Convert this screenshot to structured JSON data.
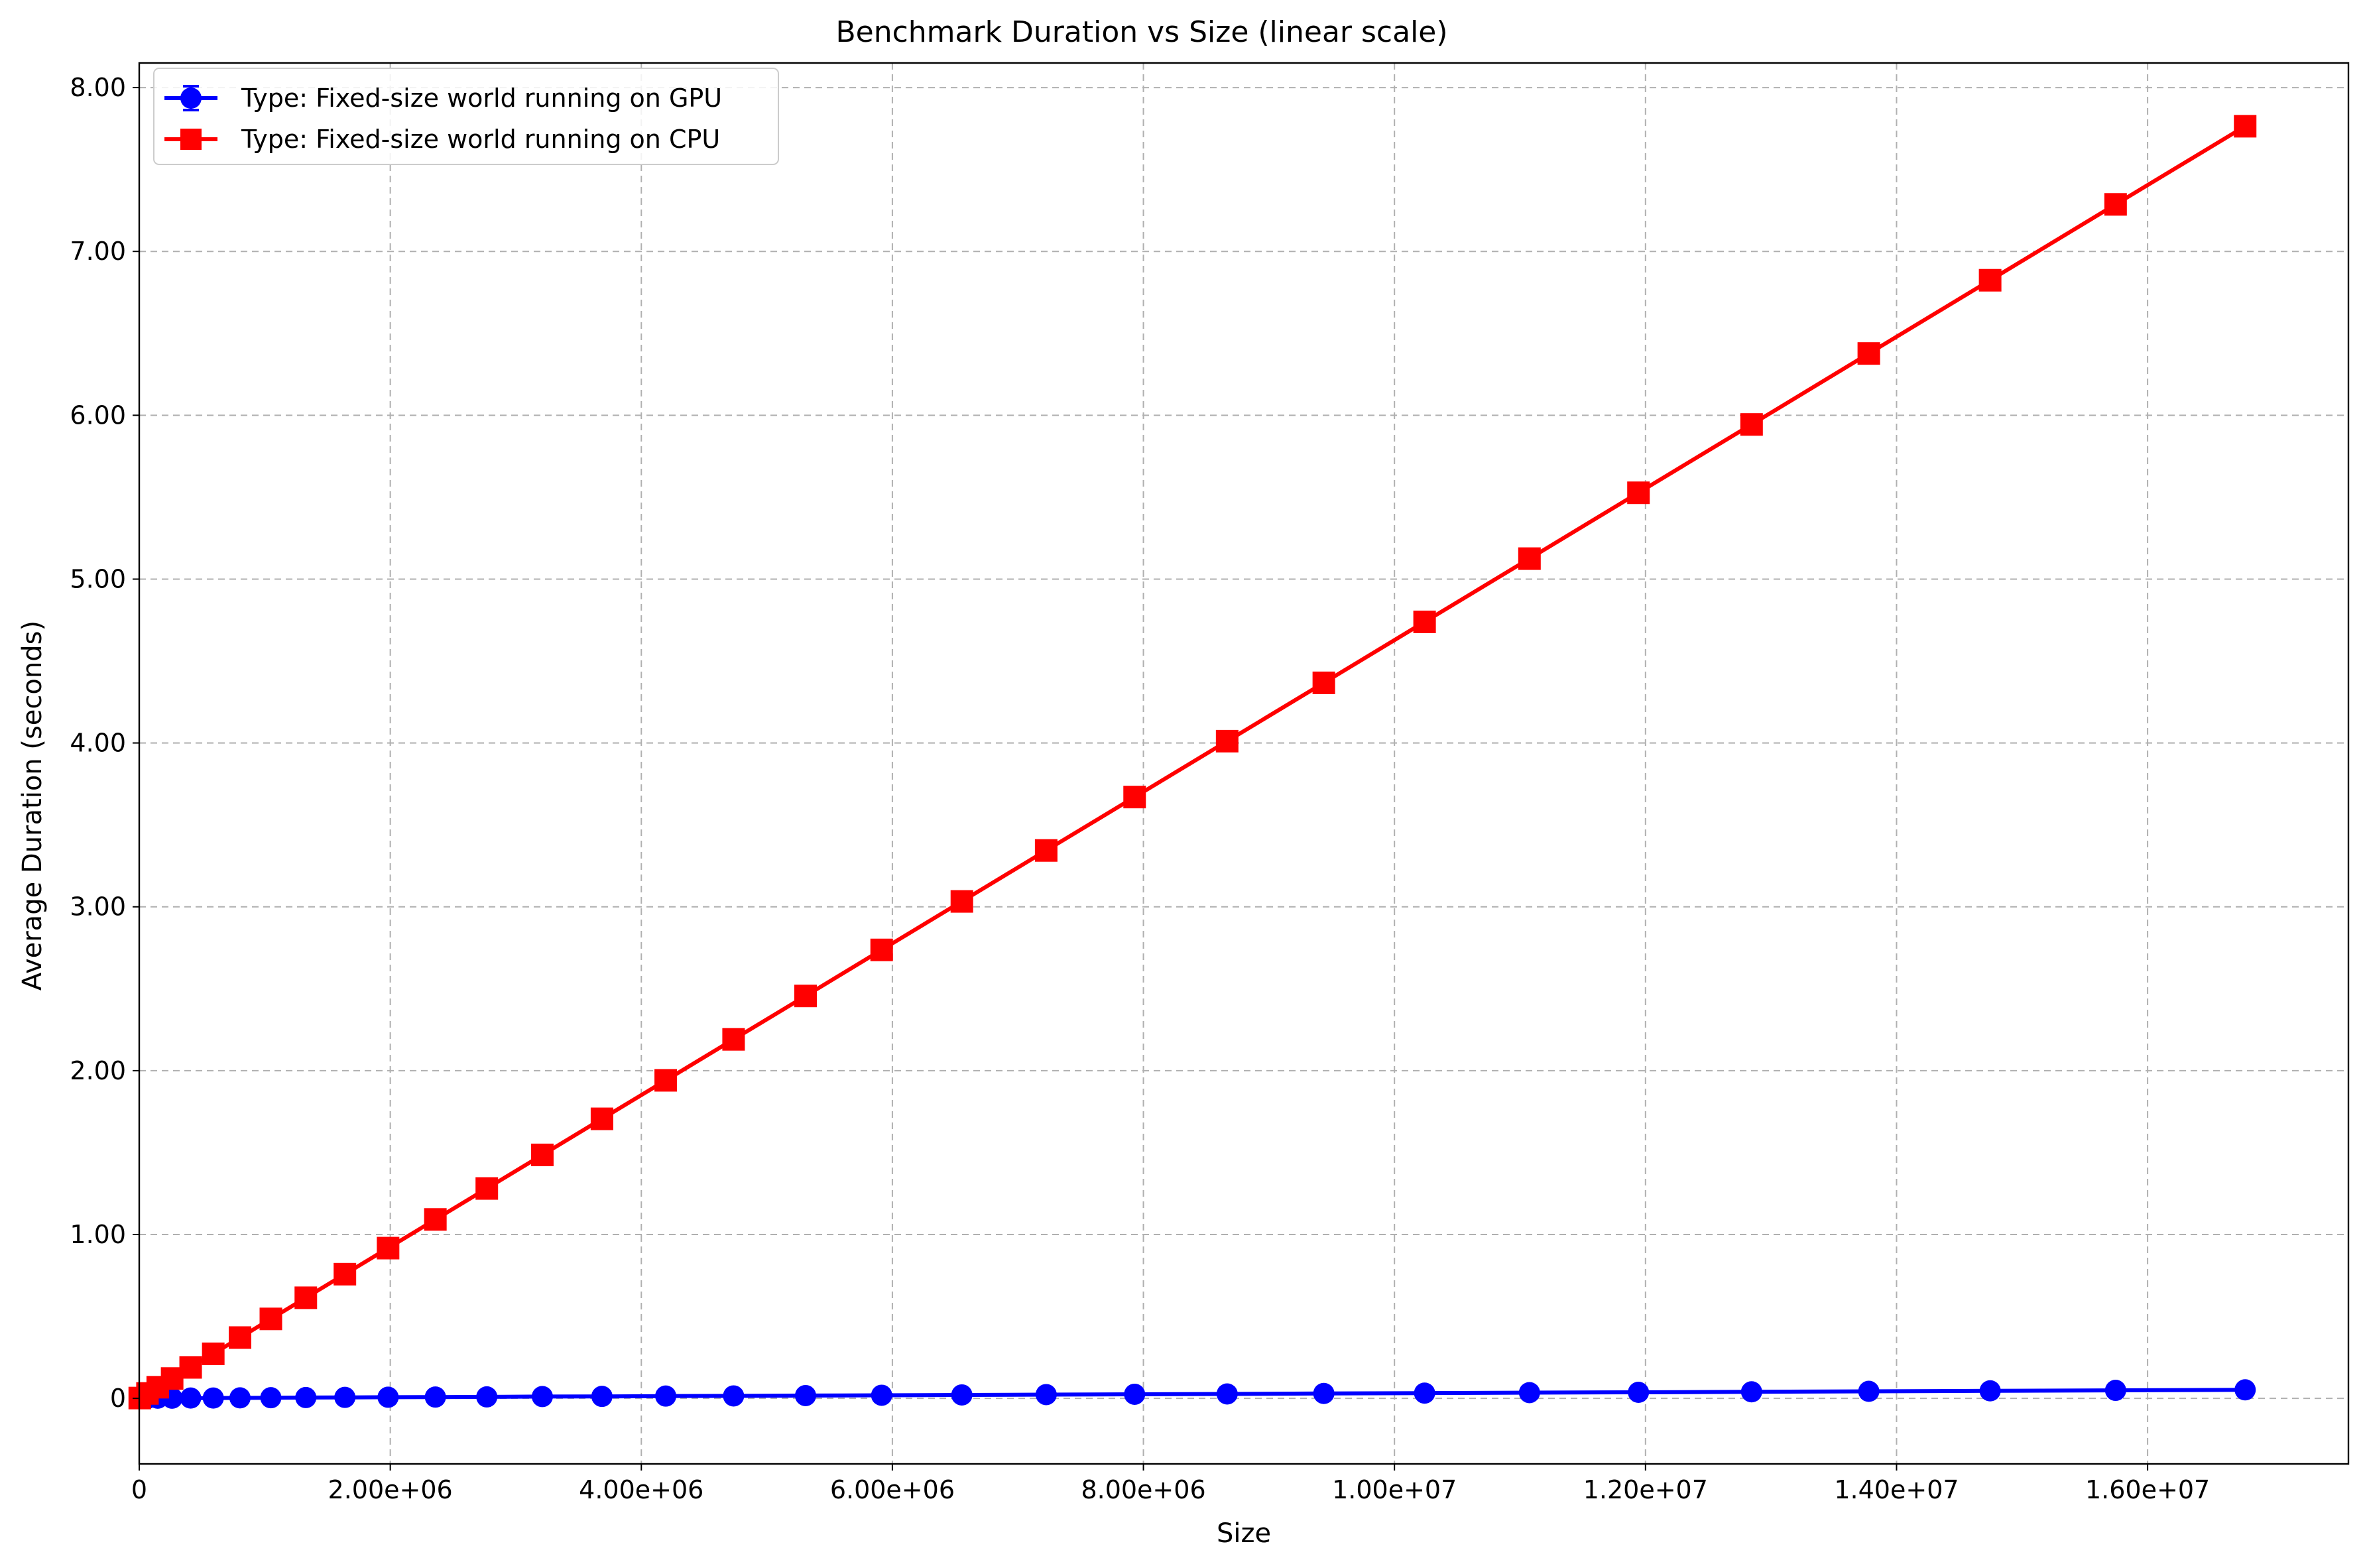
{
  "chart_data": {
    "type": "line",
    "title": "Benchmark Duration vs Size (linear scale)",
    "xlabel": "Size",
    "ylabel": "Average Duration (seconds)",
    "xlim": [
      0,
      17600000
    ],
    "ylim": [
      -0.4,
      8.15
    ],
    "x_ticks": [
      {
        "value": 0,
        "label": "0"
      },
      {
        "value": 2000000,
        "label": "2.00e+06"
      },
      {
        "value": 4000000,
        "label": "4.00e+06"
      },
      {
        "value": 6000000,
        "label": "6.00e+06"
      },
      {
        "value": 8000000,
        "label": "8.00e+06"
      },
      {
        "value": 10000000,
        "label": "1.00e+07"
      },
      {
        "value": 12000000,
        "label": "1.20e+07"
      },
      {
        "value": 14000000,
        "label": "1.40e+07"
      },
      {
        "value": 16000000,
        "label": "1.60e+07"
      }
    ],
    "y_ticks": [
      {
        "value": 0,
        "label": "0"
      },
      {
        "value": 1,
        "label": "1.00"
      },
      {
        "value": 2,
        "label": "2.00"
      },
      {
        "value": 3,
        "label": "3.00"
      },
      {
        "value": 4,
        "label": "4.00"
      },
      {
        "value": 5,
        "label": "5.00"
      },
      {
        "value": 6,
        "label": "6.00"
      },
      {
        "value": 7,
        "label": "7.00"
      },
      {
        "value": 8,
        "label": "8.00"
      }
    ],
    "grid": true,
    "legend_position": "top-left",
    "series": [
      {
        "name": "Type: Fixed-size world running on GPU",
        "color": "#0000ff",
        "marker": "circle",
        "x": [
          4096,
          65536,
          147456,
          262144,
          409600,
          589824,
          802816,
          1048576,
          1327104,
          1638400,
          1982464,
          2359296,
          2768896,
          3211264,
          3686400,
          4194304,
          4734976,
          5308416,
          5914624,
          6553600,
          7225344,
          7929856,
          8667136,
          9437184,
          10240000,
          11075584,
          11943936,
          12845056,
          13778944,
          14745600,
          15745024,
          16777216
        ],
        "y": [
          0.0,
          0.0,
          0.001,
          0.001,
          0.002,
          0.002,
          0.003,
          0.004,
          0.005,
          0.006,
          0.007,
          0.008,
          0.009,
          0.011,
          0.012,
          0.014,
          0.015,
          0.017,
          0.019,
          0.021,
          0.023,
          0.025,
          0.027,
          0.03,
          0.032,
          0.035,
          0.037,
          0.04,
          0.043,
          0.046,
          0.049,
          0.052
        ]
      },
      {
        "name": "Type: Fixed-size world running on CPU",
        "color": "#ff0000",
        "marker": "square",
        "x": [
          4096,
          65536,
          147456,
          262144,
          409600,
          589824,
          802816,
          1048576,
          1327104,
          1638400,
          1982464,
          2359296,
          2768896,
          3211264,
          3686400,
          4194304,
          4734976,
          5308416,
          5914624,
          6553600,
          7225344,
          7929856,
          8667136,
          9437184,
          10240000,
          11075584,
          11943936,
          12845056,
          13778944,
          14745600,
          15745024,
          16777216
        ],
        "y": [
          0.002,
          0.03,
          0.068,
          0.121,
          0.189,
          0.272,
          0.371,
          0.485,
          0.614,
          0.758,
          0.917,
          1.092,
          1.281,
          1.486,
          1.706,
          1.941,
          2.191,
          2.456,
          2.737,
          3.033,
          3.344,
          3.67,
          4.011,
          4.367,
          4.739,
          5.125,
          5.527,
          5.944,
          6.377,
          6.824,
          7.287,
          7.764
        ]
      }
    ]
  }
}
